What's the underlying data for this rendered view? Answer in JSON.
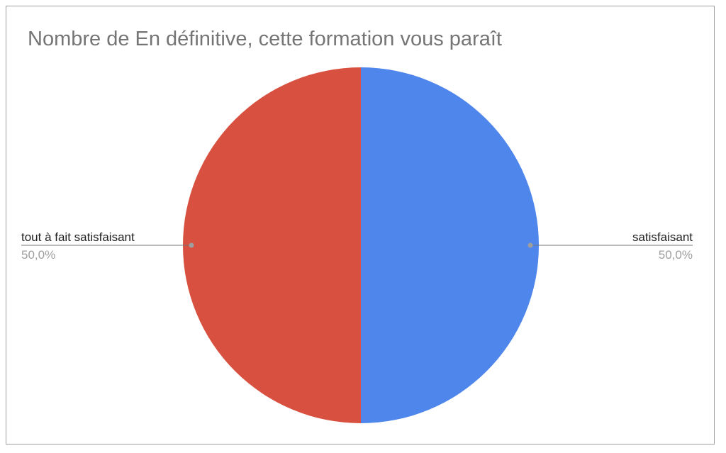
{
  "chart_data": {
    "type": "pie",
    "title": "Nombre de En définitive, cette formation vous paraît",
    "slices": [
      {
        "label": "satisfaisant",
        "value": 50.0,
        "percent_label": "50,0%",
        "color": "#4f86ec"
      },
      {
        "label": "tout à fait satisfaisant",
        "value": 50.0,
        "percent_label": "50,0%",
        "color": "#d85140"
      }
    ],
    "legend": "none",
    "label_style": "callout-lines"
  }
}
